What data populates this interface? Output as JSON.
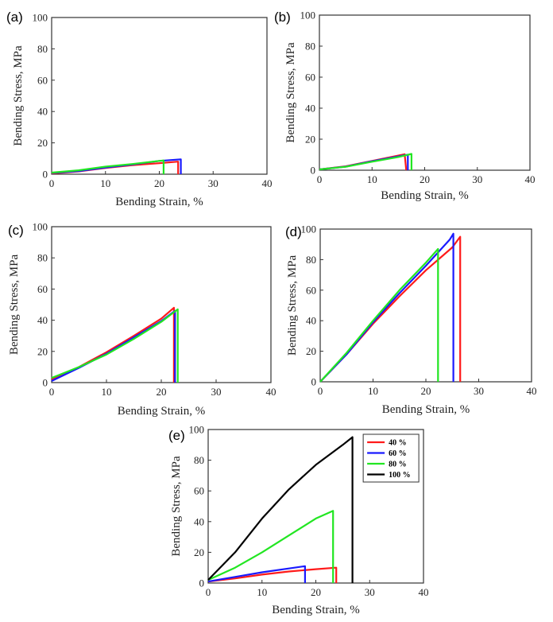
{
  "colors": {
    "red": "#ff1a1a",
    "blue": "#1a1aff",
    "green": "#22e622",
    "black": "#000000"
  },
  "chart_data": [
    {
      "panel": "(a)",
      "type": "line",
      "xlabel": "Bending Strain, %",
      "ylabel": "Bending Stress, MPa",
      "xlim": [
        0,
        40
      ],
      "ylim": [
        0,
        100
      ],
      "xticks": [
        "0",
        "10",
        "20",
        "30",
        "40"
      ],
      "yticks": [
        "0",
        "20",
        "40",
        "60",
        "80",
        "100"
      ],
      "series": [
        {
          "color": "red",
          "points": [
            [
              0,
              0.5
            ],
            [
              5,
              1.8
            ],
            [
              10,
              4
            ],
            [
              15,
              5.8
            ],
            [
              20,
              7
            ],
            [
              23.5,
              8
            ],
            [
              23.5,
              0
            ]
          ]
        },
        {
          "color": "blue",
          "points": [
            [
              0,
              0.8
            ],
            [
              5,
              2
            ],
            [
              10,
              4.2
            ],
            [
              15,
              6.2
            ],
            [
              20,
              8.5
            ],
            [
              24,
              9.5
            ],
            [
              24,
              0
            ]
          ]
        },
        {
          "color": "green",
          "points": [
            [
              0,
              1
            ],
            [
              5,
              2.5
            ],
            [
              10,
              4.8
            ],
            [
              15,
              6.5
            ],
            [
              20.8,
              8.8
            ],
            [
              20.8,
              0
            ]
          ]
        }
      ]
    },
    {
      "panel": "(b)",
      "type": "line",
      "xlabel": "Bending Strain, %",
      "ylabel": "Bending Stress, MPa",
      "xlim": [
        0,
        40
      ],
      "ylim": [
        0,
        100
      ],
      "xticks": [
        "0",
        "10",
        "20",
        "30",
        "40"
      ],
      "yticks": [
        "0",
        "20",
        "40",
        "60",
        "80",
        "100"
      ],
      "series": [
        {
          "color": "red",
          "points": [
            [
              0,
              0.5
            ],
            [
              5,
              2.5
            ],
            [
              10,
              6
            ],
            [
              16.2,
              10.3
            ],
            [
              16.5,
              0
            ]
          ]
        },
        {
          "color": "blue",
          "points": [
            [
              0,
              0.5
            ],
            [
              5,
              2.3
            ],
            [
              10,
              5.8
            ],
            [
              16.8,
              10
            ],
            [
              16.8,
              0
            ]
          ]
        },
        {
          "color": "green",
          "points": [
            [
              0,
              0.5
            ],
            [
              5,
              2.2
            ],
            [
              10,
              5.5
            ],
            [
              15,
              8.5
            ],
            [
              17.5,
              10.5
            ],
            [
              17.5,
              0
            ]
          ]
        }
      ]
    },
    {
      "panel": "(c)",
      "type": "line",
      "xlabel": "Bending Strain, %",
      "ylabel": "Bending Stress, MPa",
      "xlim": [
        0,
        40
      ],
      "ylim": [
        0,
        100
      ],
      "xticks": [
        "0",
        "10",
        "20",
        "30",
        "40"
      ],
      "yticks": [
        "0",
        "20",
        "40",
        "60",
        "80",
        "100"
      ],
      "series": [
        {
          "color": "red",
          "points": [
            [
              0,
              2
            ],
            [
              5,
              10
            ],
            [
              10,
              19.5
            ],
            [
              15,
              30
            ],
            [
              20,
              41
            ],
            [
              22.3,
              48
            ],
            [
              22.3,
              0
            ]
          ]
        },
        {
          "color": "blue",
          "points": [
            [
              0,
              1
            ],
            [
              5,
              9.5
            ],
            [
              10,
              18.5
            ],
            [
              15,
              29
            ],
            [
              20,
              39.5
            ],
            [
              22.5,
              46
            ],
            [
              22.5,
              0
            ]
          ]
        },
        {
          "color": "green",
          "points": [
            [
              0,
              3
            ],
            [
              5,
              10
            ],
            [
              10,
              18
            ],
            [
              15,
              28
            ],
            [
              20,
              39
            ],
            [
              23,
              47
            ],
            [
              23,
              0
            ]
          ]
        }
      ]
    },
    {
      "panel": "(d)",
      "type": "line",
      "xlabel": "Bending Strain, %",
      "ylabel": "Bending Stress, MPa",
      "xlim": [
        0,
        40
      ],
      "ylim": [
        0,
        100
      ],
      "xticks": [
        "0",
        "10",
        "20",
        "30",
        "40"
      ],
      "yticks": [
        "0",
        "20",
        "40",
        "60",
        "80",
        "100"
      ],
      "series": [
        {
          "color": "red",
          "points": [
            [
              0,
              0
            ],
            [
              5,
              18
            ],
            [
              10,
              38
            ],
            [
              15,
              56
            ],
            [
              20,
              73
            ],
            [
              25,
              88
            ],
            [
              26.5,
              95
            ],
            [
              26.5,
              0
            ]
          ]
        },
        {
          "color": "blue",
          "points": [
            [
              0,
              0
            ],
            [
              5,
              18
            ],
            [
              10,
              39
            ],
            [
              15,
              58
            ],
            [
              20,
              76
            ],
            [
              24.5,
              93
            ],
            [
              25.2,
              97
            ],
            [
              25.2,
              0
            ]
          ]
        },
        {
          "color": "green",
          "points": [
            [
              0,
              0
            ],
            [
              5,
              19
            ],
            [
              10,
              40
            ],
            [
              15,
              60
            ],
            [
              20,
              78
            ],
            [
              22.3,
              87
            ],
            [
              22.3,
              0
            ]
          ]
        }
      ]
    },
    {
      "panel": "(e)",
      "type": "line",
      "xlabel": "Bending Strain, %",
      "ylabel": "Bending Stress, MPa",
      "xlim": [
        0,
        40
      ],
      "ylim": [
        0,
        100
      ],
      "xticks": [
        "0",
        "10",
        "20",
        "30",
        "40"
      ],
      "yticks": [
        "0",
        "20",
        "40",
        "60",
        "80",
        "100"
      ],
      "legend_position": "top-right",
      "series": [
        {
          "name": "40 %",
          "color": "red",
          "points": [
            [
              0,
              1
            ],
            [
              5,
              3
            ],
            [
              10,
              5.5
            ],
            [
              15,
              7.5
            ],
            [
              20,
              9
            ],
            [
              23.8,
              10
            ],
            [
              23.8,
              0
            ]
          ]
        },
        {
          "name": "60 %",
          "color": "blue",
          "points": [
            [
              0,
              1
            ],
            [
              5,
              4
            ],
            [
              10,
              7
            ],
            [
              15,
              9.5
            ],
            [
              18,
              11
            ],
            [
              18,
              0
            ]
          ]
        },
        {
          "name": "80 %",
          "color": "green",
          "points": [
            [
              0,
              2
            ],
            [
              5,
              10
            ],
            [
              10,
              20
            ],
            [
              15,
              31
            ],
            [
              20,
              42
            ],
            [
              23.2,
              47
            ],
            [
              23.2,
              0
            ]
          ]
        },
        {
          "name": "100 %",
          "color": "black",
          "points": [
            [
              0,
              2
            ],
            [
              5,
              20
            ],
            [
              10,
              42
            ],
            [
              15,
              61
            ],
            [
              20,
              77
            ],
            [
              25,
              90
            ],
            [
              26.8,
              95
            ],
            [
              26.8,
              0
            ]
          ]
        }
      ]
    }
  ]
}
